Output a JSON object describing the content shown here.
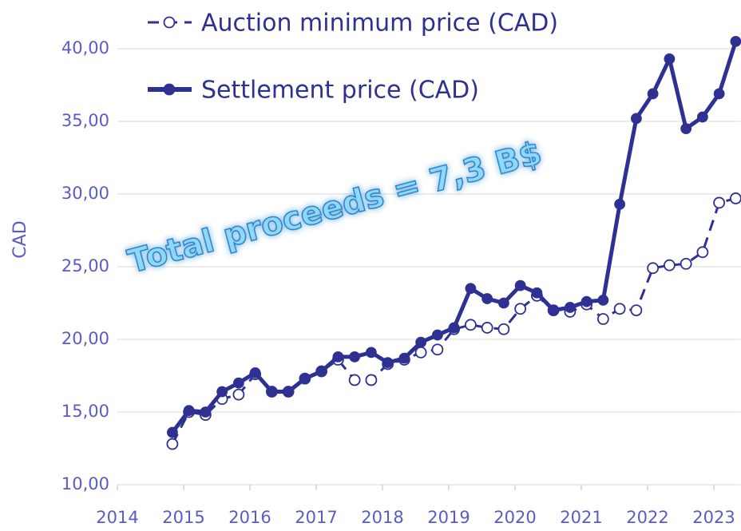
{
  "chart_data": {
    "type": "line",
    "y_label": "CAD",
    "annotation": "Total proceeds = 7,3 B$",
    "x": [
      2014.83,
      2015.08,
      2015.33,
      2015.58,
      2015.83,
      2016.08,
      2016.33,
      2016.58,
      2016.83,
      2017.08,
      2017.33,
      2017.58,
      2017.83,
      2018.08,
      2018.33,
      2018.58,
      2018.83,
      2019.08,
      2019.33,
      2019.58,
      2019.83,
      2020.08,
      2020.33,
      2020.58,
      2020.83,
      2021.08,
      2021.33,
      2021.58,
      2021.83,
      2022.08,
      2022.33,
      2022.58,
      2022.83,
      2023.08,
      2023.33
    ],
    "series": [
      {
        "name": "Auction minimum price (CAD)",
        "color": "#2e3192",
        "style": "dashed",
        "marker": "hollow",
        "values": [
          12.8,
          15.0,
          14.8,
          15.9,
          16.2,
          17.6,
          16.4,
          16.4,
          17.3,
          17.8,
          18.6,
          17.2,
          17.2,
          18.3,
          18.6,
          19.1,
          19.3,
          20.7,
          21.0,
          20.8,
          20.7,
          22.1,
          23.0,
          22.0,
          21.9,
          22.4,
          21.4,
          22.1,
          22.0,
          24.9,
          25.1,
          25.2,
          26.0,
          29.4,
          29.7
        ]
      },
      {
        "name": "Settlement price (CAD)",
        "color": "#2e3192",
        "style": "solid",
        "marker": "filled",
        "values": [
          13.6,
          15.1,
          15.0,
          16.4,
          17.0,
          17.7,
          16.4,
          16.4,
          17.3,
          17.8,
          18.8,
          18.8,
          19.1,
          18.4,
          18.7,
          19.8,
          20.3,
          20.8,
          23.5,
          22.8,
          22.5,
          23.7,
          23.2,
          22.0,
          22.2,
          22.6,
          22.7,
          29.3,
          35.2,
          36.9,
          39.3,
          34.5,
          35.3,
          36.9,
          40.5
        ]
      }
    ],
    "xlim": [
      2014,
      2023.4
    ],
    "xticks": [
      2014,
      2015,
      2016,
      2017,
      2018,
      2019,
      2020,
      2021,
      2022,
      2023
    ],
    "ylim": [
      10,
      42
    ],
    "yticks": [
      {
        "value": 10,
        "label": "10,00"
      },
      {
        "value": 15,
        "label": "15,00"
      },
      {
        "value": 20,
        "label": "20,00"
      },
      {
        "value": 25,
        "label": "25,00"
      },
      {
        "value": 30,
        "label": "30,00"
      },
      {
        "value": 35,
        "label": "35,00"
      },
      {
        "value": 40,
        "label": "40,00"
      }
    ],
    "grid": true
  }
}
